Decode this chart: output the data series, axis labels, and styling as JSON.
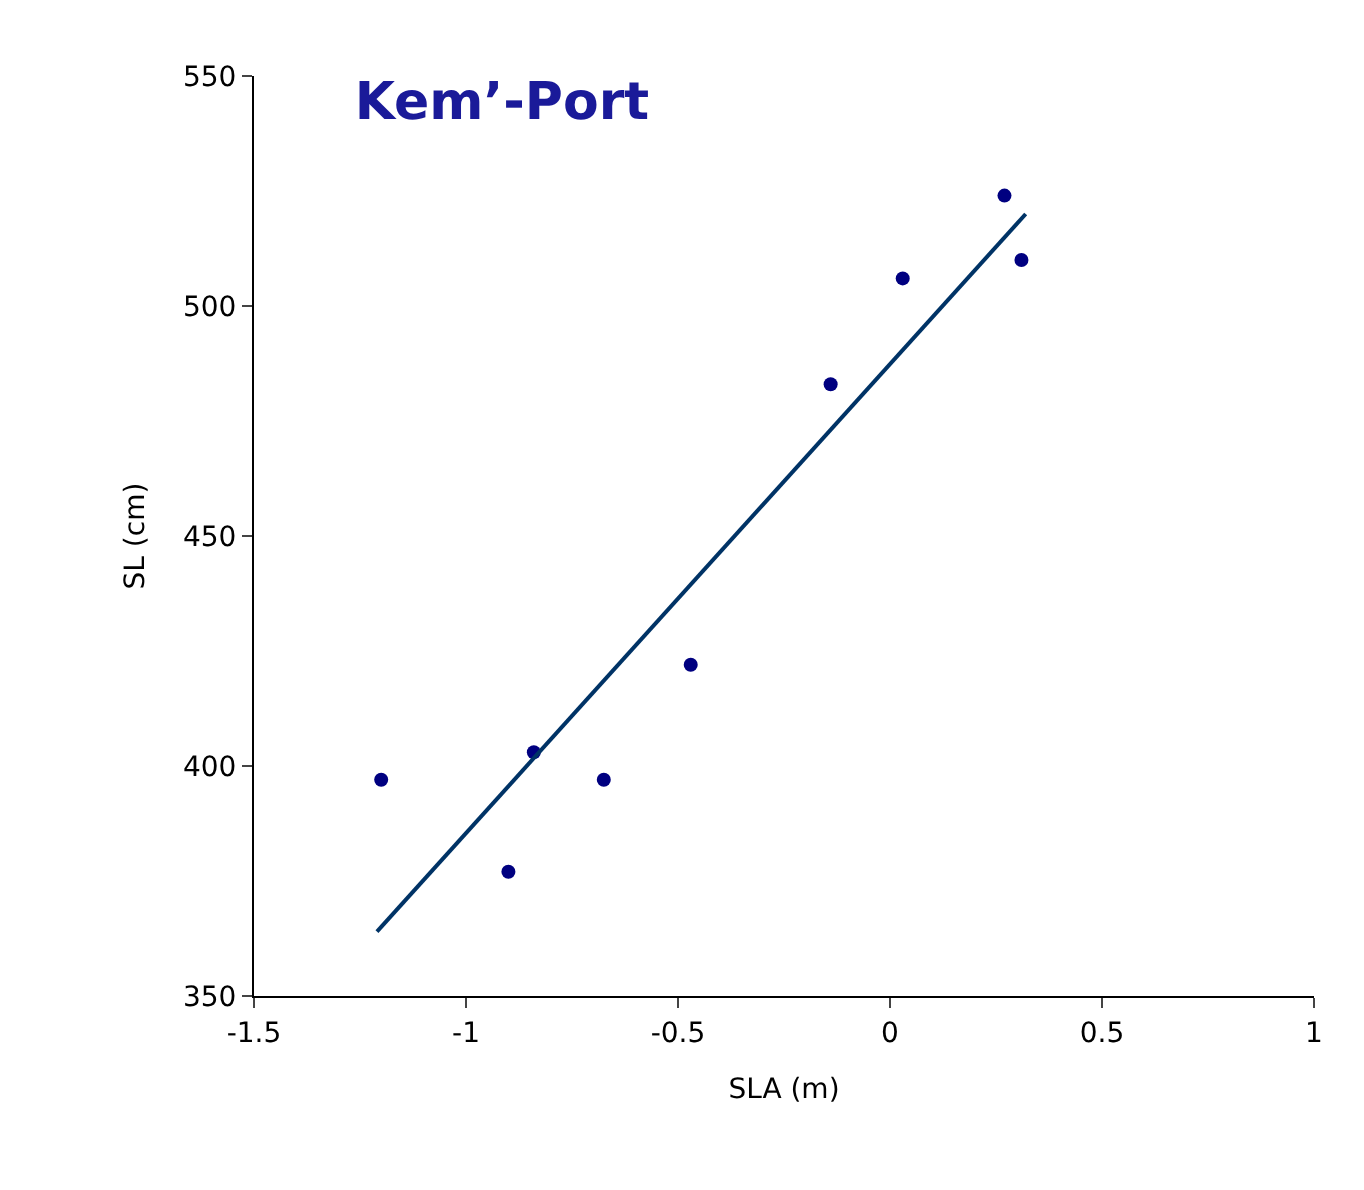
{
  "chart_data": {
    "type": "scatter",
    "title": "Kem’-Port",
    "xlabel": "SLA (m)",
    "ylabel": "SL (cm)",
    "xlim": [
      -1.5,
      1
    ],
    "xticks": [
      -1.5,
      -1,
      -0.5,
      0,
      0.5,
      1
    ],
    "ylim": [
      350,
      550
    ],
    "yticks": [
      350,
      400,
      450,
      500,
      550
    ],
    "series": [
      {
        "marker": "circle",
        "color": "#000080",
        "x": [
          -1.2,
          -0.9,
          -0.84,
          -0.675,
          -0.47,
          -0.14,
          0.03,
          0.27,
          0.31
        ],
        "values": [
          397,
          377,
          403,
          397,
          422,
          483,
          506,
          524,
          510
        ]
      },
      {
        "type": "line",
        "marker": "none",
        "color": "#003366",
        "x": [
          -1.21,
          0.32
        ],
        "values": [
          364,
          520
        ]
      }
    ]
  }
}
